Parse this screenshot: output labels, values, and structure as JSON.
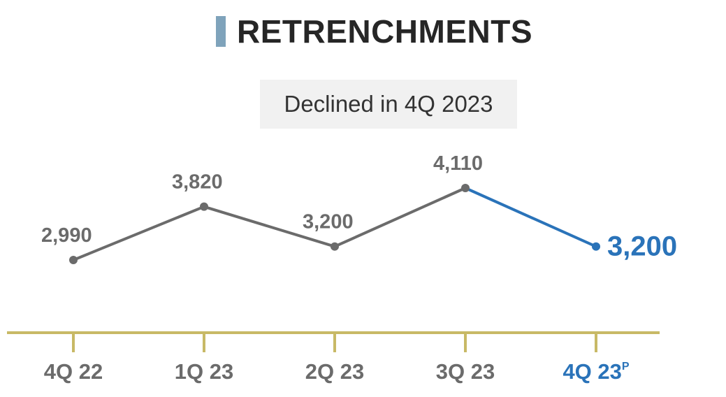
{
  "title": "RETRENCHMENTS",
  "subtitle": "Declined in 4Q 2023",
  "colors": {
    "title_bar": "#7fa3bb",
    "series_line": "#6b6b6b",
    "highlight": "#2a73b9",
    "axis": "#c8b966",
    "label_text": "#6b6b6b",
    "subtitle_bg": "#f1f1f1"
  },
  "chart_data": {
    "type": "line",
    "title": "RETRENCHMENTS",
    "subtitle": "Declined in 4Q 2023",
    "categories": [
      "4Q 22",
      "1Q 23",
      "2Q 23",
      "3Q 23",
      "4Q 23"
    ],
    "category_superscripts": [
      "",
      "",
      "",
      "",
      "P"
    ],
    "values": [
      2990,
      3820,
      3200,
      4110,
      3200
    ],
    "value_labels": [
      "2,990",
      "3,820",
      "3,200",
      "4,110",
      "3,200"
    ],
    "highlight_index": 4,
    "xlabel": "",
    "ylabel": "",
    "grid": false
  }
}
